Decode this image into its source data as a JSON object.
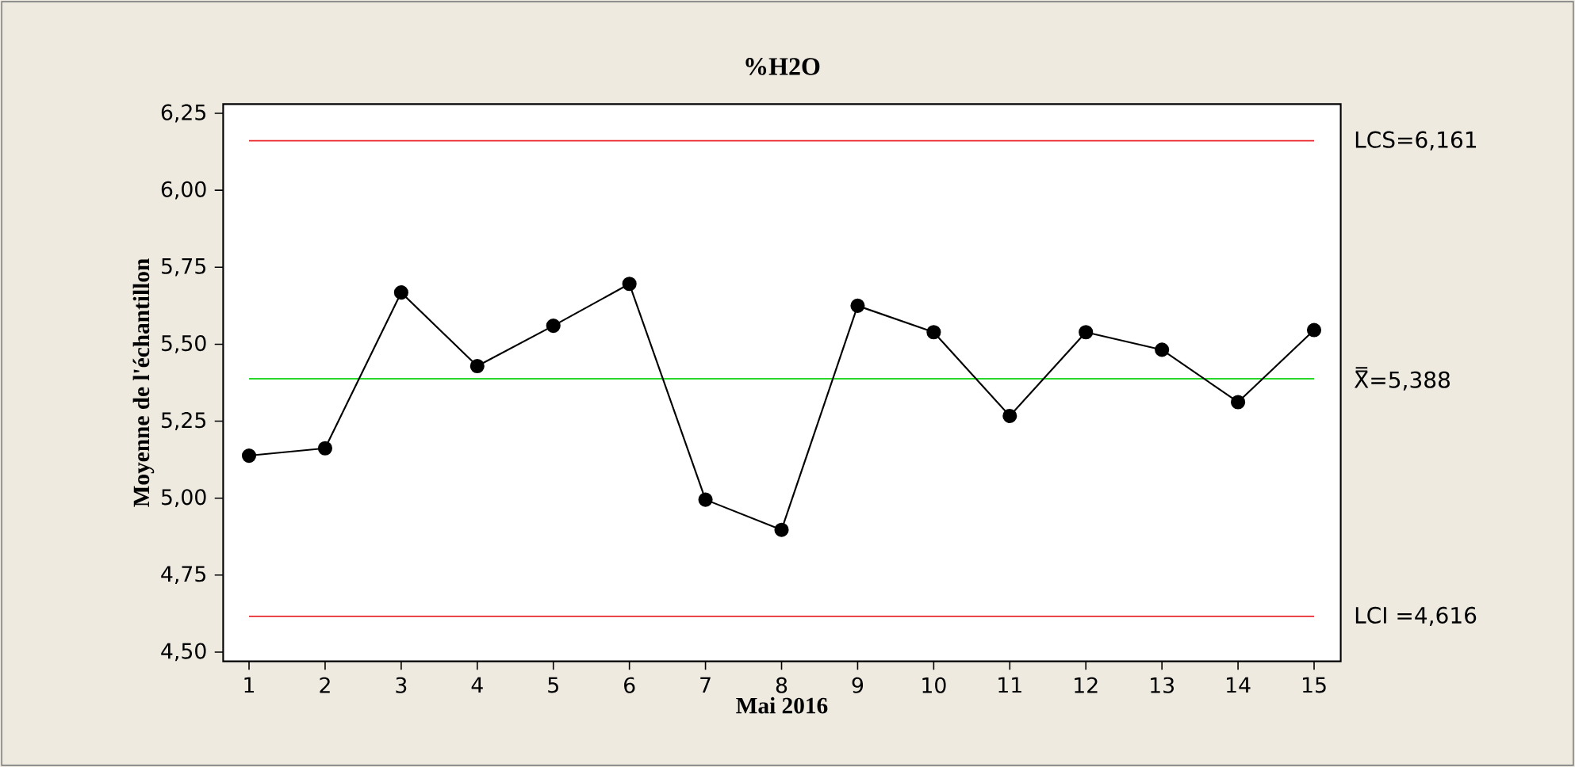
{
  "chart_data": {
    "type": "line",
    "title": "%H2O",
    "xlabel": "Mai 2016",
    "ylabel": "Moyenne de l'échantillon",
    "x": [
      1,
      2,
      3,
      4,
      5,
      6,
      7,
      8,
      9,
      10,
      11,
      12,
      13,
      14,
      15
    ],
    "series": [
      {
        "color": "#000000",
        "values": [
          5.138,
          5.162,
          5.668,
          5.429,
          5.56,
          5.696,
          4.995,
          4.897,
          5.625,
          5.539,
          5.267,
          5.539,
          5.482,
          5.312,
          5.546
        ]
      }
    ],
    "marker": "circle",
    "line_style": "solid",
    "xlim": [
      0.66,
      15.35
    ],
    "ylim": [
      4.47,
      6.28
    ],
    "xticks": [
      1,
      2,
      3,
      4,
      5,
      6,
      7,
      8,
      9,
      10,
      11,
      12,
      13,
      14,
      15
    ],
    "yticks": [
      {
        "value": 4.5,
        "label": "4,50"
      },
      {
        "value": 4.75,
        "label": "4,75"
      },
      {
        "value": 5.0,
        "label": "5,00"
      },
      {
        "value": 5.25,
        "label": "5,25"
      },
      {
        "value": 5.5,
        "label": "5,50"
      },
      {
        "value": 5.75,
        "label": "5,75"
      },
      {
        "value": 6.0,
        "label": "6,00"
      },
      {
        "value": 6.25,
        "label": "6,25"
      }
    ],
    "ref_lines": [
      {
        "axis": "y",
        "value": 6.161,
        "label": "LCS=6,161",
        "color": "#e8282c"
      },
      {
        "axis": "y",
        "value": 5.388,
        "label": "X̿=5,388",
        "color": "#28d828"
      },
      {
        "axis": "y",
        "value": 4.616,
        "label": "LCI =4,616",
        "color": "#e8282c"
      }
    ]
  }
}
